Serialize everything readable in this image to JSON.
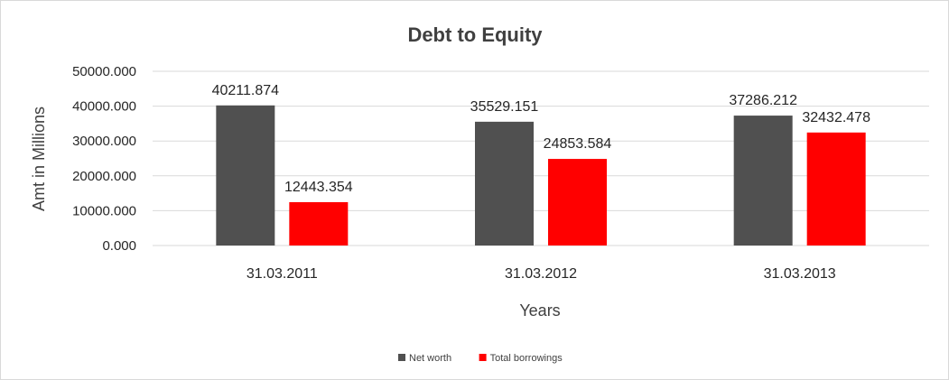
{
  "chart_data": {
    "type": "bar",
    "title": "Debt to Equity",
    "xlabel": "Years",
    "ylabel": "Amt in Millions",
    "categories": [
      "31.03.2011",
      "31.03.2012",
      "31.03.2013"
    ],
    "series": [
      {
        "name": "Net worth",
        "color": "#505050",
        "values": [
          40211.874,
          35529.151,
          37286.212
        ]
      },
      {
        "name": "Total borrowings",
        "color": "#ff0000",
        "values": [
          12443.354,
          24853.584,
          32432.478
        ]
      }
    ],
    "ylim": [
      0,
      50000
    ],
    "yticks": [
      0,
      10000,
      20000,
      30000,
      40000,
      50000
    ],
    "tick_decimals": 3,
    "grid": true,
    "legend": "bottom"
  }
}
